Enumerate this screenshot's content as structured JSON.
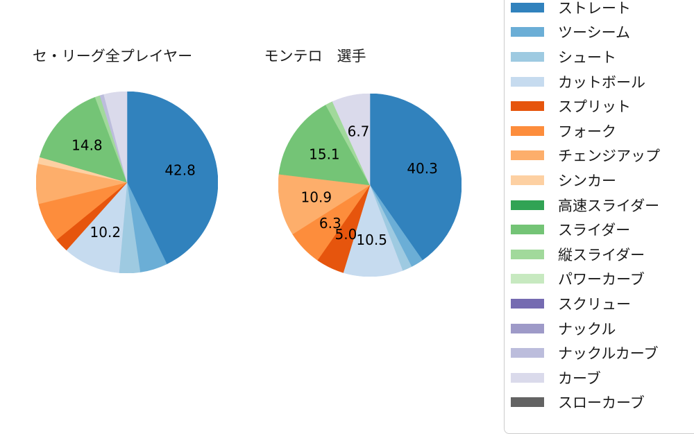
{
  "figure": {
    "background": "#ffffff",
    "text_color": "#1a1a1a"
  },
  "palette": {
    "ストレート": "#3182bd",
    "ツーシーム": "#6baed6",
    "シュート": "#9ecae1",
    "カットボール": "#c6dbef",
    "スプリット": "#e6550d",
    "フォーク": "#fd8d3c",
    "チェンジアップ": "#fdae6b",
    "シンカー": "#fdd0a2",
    "高速スライダー": "#31a354",
    "スライダー": "#74c476",
    "縦スライダー": "#a1d99b",
    "パワーカーブ": "#c7e9c0",
    "スクリュー": "#756bb1",
    "ナックル": "#9e9ac8",
    "ナックルカーブ": "#bcbddc",
    "カーブ": "#dadaeb",
    "スローカーブ": "#636363"
  },
  "legend": {
    "border_color": "#cccccc",
    "items": [
      {
        "label": "ストレート",
        "color": "#3182bd"
      },
      {
        "label": "ツーシーム",
        "color": "#6baed6"
      },
      {
        "label": "シュート",
        "color": "#9ecae1"
      },
      {
        "label": "カットボール",
        "color": "#c6dbef"
      },
      {
        "label": "スプリット",
        "color": "#e6550d"
      },
      {
        "label": "フォーク",
        "color": "#fd8d3c"
      },
      {
        "label": "チェンジアップ",
        "color": "#fdae6b"
      },
      {
        "label": "シンカー",
        "color": "#fdd0a2"
      },
      {
        "label": "高速スライダー",
        "color": "#31a354"
      },
      {
        "label": "スライダー",
        "color": "#74c476"
      },
      {
        "label": "縦スライダー",
        "color": "#a1d99b"
      },
      {
        "label": "パワーカーブ",
        "color": "#c7e9c0"
      },
      {
        "label": "スクリュー",
        "color": "#756bb1"
      },
      {
        "label": "ナックル",
        "color": "#9e9ac8"
      },
      {
        "label": "ナックルカーブ",
        "color": "#bcbddc"
      },
      {
        "label": "カーブ",
        "color": "#dadaeb"
      },
      {
        "label": "スローカーブ",
        "color": "#636363"
      }
    ]
  },
  "chart_data": [
    {
      "type": "pie",
      "title": "セ・リーグ全プレイヤー",
      "start_angle": "top",
      "direction": "clockwise",
      "unit": "percent",
      "label_position_radius_fraction": 0.6,
      "slices": [
        {
          "label": "ストレート",
          "value": 42.8,
          "pct_label": "42.8",
          "color": "#3182bd"
        },
        {
          "label": "ツーシーム",
          "value": 4.9,
          "pct_label": null,
          "color": "#6baed6"
        },
        {
          "label": "シュート",
          "value": 3.7,
          "pct_label": null,
          "color": "#9ecae1"
        },
        {
          "label": "カットボール",
          "value": 10.2,
          "pct_label": "10.2",
          "color": "#c6dbef"
        },
        {
          "label": "スプリット",
          "value": 2.5,
          "pct_label": null,
          "color": "#e6550d"
        },
        {
          "label": "フォーク",
          "value": 7.1,
          "pct_label": null,
          "color": "#fd8d3c"
        },
        {
          "label": "チェンジアップ",
          "value": 7.1,
          "pct_label": null,
          "color": "#fdae6b"
        },
        {
          "label": "シンカー",
          "value": 1.2,
          "pct_label": null,
          "color": "#fdd0a2"
        },
        {
          "label": "スライダー",
          "value": 14.8,
          "pct_label": "14.8",
          "color": "#74c476"
        },
        {
          "label": "縦スライダー",
          "value": 0.9,
          "pct_label": null,
          "color": "#a1d99b"
        },
        {
          "label": "ナックルカーブ",
          "value": 0.7,
          "pct_label": null,
          "color": "#bcbddc"
        },
        {
          "label": "カーブ",
          "value": 4.1,
          "pct_label": null,
          "color": "#dadaeb"
        }
      ]
    },
    {
      "type": "pie",
      "title": "モンテロ　選手",
      "start_angle": "top",
      "direction": "clockwise",
      "unit": "percent",
      "label_position_radius_fraction": 0.6,
      "slices": [
        {
          "label": "ストレート",
          "value": 40.3,
          "pct_label": "40.3",
          "color": "#3182bd"
        },
        {
          "label": "ツーシーム",
          "value": 2.2,
          "pct_label": null,
          "color": "#6baed6"
        },
        {
          "label": "シュート",
          "value": 1.7,
          "pct_label": null,
          "color": "#9ecae1"
        },
        {
          "label": "カットボール",
          "value": 10.5,
          "pct_label": "10.5",
          "color": "#c6dbef"
        },
        {
          "label": "スプリット",
          "value": 5.0,
          "pct_label": "5.0",
          "color": "#e6550d"
        },
        {
          "label": "フォーク",
          "value": 6.3,
          "pct_label": "6.3",
          "color": "#fd8d3c"
        },
        {
          "label": "チェンジアップ",
          "value": 10.9,
          "pct_label": "10.9",
          "color": "#fdae6b"
        },
        {
          "label": "スライダー",
          "value": 15.1,
          "pct_label": "15.1",
          "color": "#74c476"
        },
        {
          "label": "縦スライダー",
          "value": 1.3,
          "pct_label": null,
          "color": "#a1d99b"
        },
        {
          "label": "カーブ",
          "value": 6.7,
          "pct_label": "6.7",
          "color": "#dadaeb"
        }
      ]
    }
  ]
}
